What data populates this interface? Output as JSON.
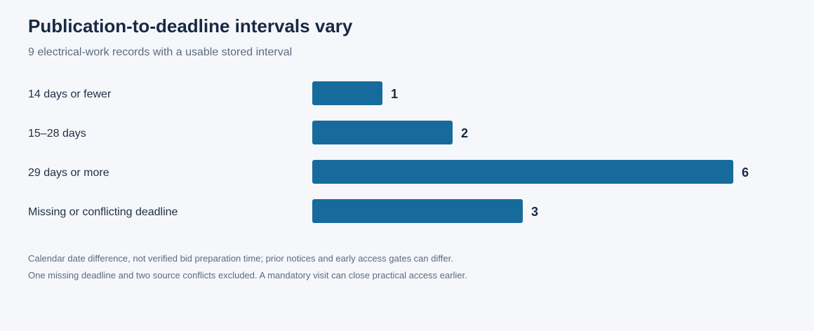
{
  "chart_data": {
    "type": "bar",
    "orientation": "horizontal",
    "title": "Publication-to-deadline intervals vary",
    "subtitle": "9 electrical-work records with a usable stored interval",
    "categories": [
      "14 days or fewer",
      "15–28 days",
      "29 days or more",
      "Missing or conflicting deadline"
    ],
    "values": [
      1,
      2,
      6,
      3
    ],
    "value_labels": [
      "1",
      "2",
      "6",
      "3"
    ],
    "xlim": [
      0,
      6
    ],
    "grid": false,
    "bar_color": "#176b9c",
    "notes": [
      "Calendar date difference, not verified bid preparation time; prior notices and early access gates can differ.",
      "One missing deadline and two source conflicts excluded. A mandatory visit can close practical access earlier."
    ]
  }
}
